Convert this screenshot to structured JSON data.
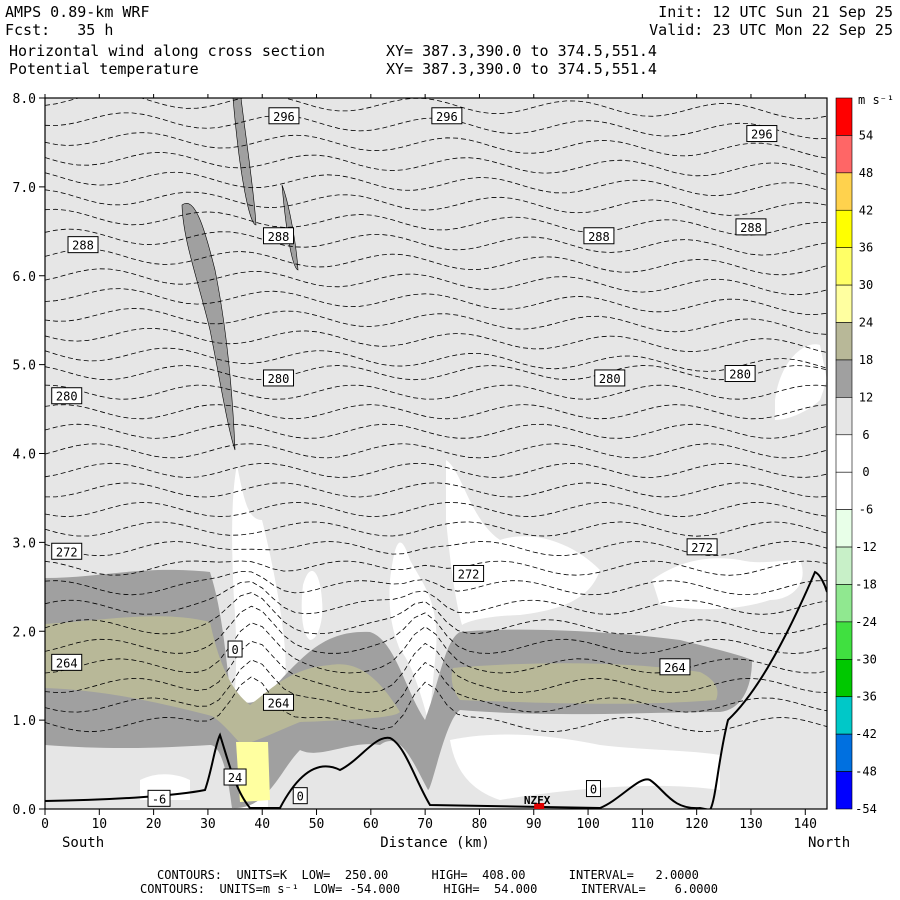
{
  "header": {
    "model": "AMPS 0.89-km WRF",
    "fcst": "Fcst:   35 h",
    "init": "Init: 12 UTC Sun 21 Sep 25",
    "valid": "Valid: 23 UTC Mon 22 Sep 25",
    "field1": "Horizontal wind along cross section",
    "field2": "Potential temperature",
    "xy1": "XY= 387.3,390.0 to 374.5,551.4",
    "xy2": "XY= 387.3,390.0 to 374.5,551.4"
  },
  "footer": {
    "line1": "CONTOURS:  UNITS=K  LOW=  250.00      HIGH=  408.00      INTERVAL=   2.0000",
    "line2": "CONTOURS:  UNITS=m s⁻¹  LOW= -54.000      HIGH=  54.000      INTERVAL=    6.0000"
  },
  "chart_data": {
    "type": "heatmap",
    "xlabel": "Distance (km)",
    "x_left_label": "South",
    "x_right_label": "North",
    "xlim": [
      0,
      144
    ],
    "ylim": [
      0,
      8
    ],
    "x_ticks": [
      0,
      10,
      20,
      30,
      40,
      50,
      60,
      70,
      80,
      90,
      100,
      110,
      120,
      130,
      140
    ],
    "y_ticks": [
      "0.0",
      "1.0",
      "2.0",
      "3.0",
      "4.0",
      "5.0",
      "6.0",
      "7.0",
      "8.0"
    ],
    "colorbar": {
      "unit_label": "m s⁻¹",
      "levels": [
        54,
        48,
        42,
        36,
        30,
        24,
        18,
        12,
        6,
        0,
        -6,
        -12,
        -18,
        -24,
        -30,
        -36,
        -42,
        -48,
        -54
      ],
      "colors": [
        "#ff0000",
        "#ff6666",
        "#ffd24d",
        "#ffff00",
        "#ffff66",
        "#ffffa0",
        "#b8b898",
        "#a0a0a0",
        "#e6e6e6",
        "#ffffff",
        "#ffffff",
        "#e8ffe8",
        "#c8f0c8",
        "#90e890",
        "#40e040",
        "#00c800",
        "#00c8c8",
        "#0070e0",
        "#0000ff"
      ]
    },
    "station": {
      "label": "NZFX",
      "x": 91,
      "y": 0.0
    },
    "theta_labels": [
      {
        "text": "296",
        "x": 44,
        "y": 7.8
      },
      {
        "text": "296",
        "x": 74,
        "y": 7.8
      },
      {
        "text": "296",
        "x": 132,
        "y": 7.6
      },
      {
        "text": "288",
        "x": 7,
        "y": 6.35
      },
      {
        "text": "288",
        "x": 43,
        "y": 6.45
      },
      {
        "text": "288",
        "x": 102,
        "y": 6.45
      },
      {
        "text": "288",
        "x": 130,
        "y": 6.55
      },
      {
        "text": "280",
        "x": 4,
        "y": 4.65
      },
      {
        "text": "280",
        "x": 43,
        "y": 4.85
      },
      {
        "text": "280",
        "x": 104,
        "y": 4.85
      },
      {
        "text": "280",
        "x": 128,
        "y": 4.9
      },
      {
        "text": "272",
        "x": 4,
        "y": 2.9
      },
      {
        "text": "272",
        "x": 78,
        "y": 2.65
      },
      {
        "text": "272",
        "x": 121,
        "y": 2.95
      },
      {
        "text": "264",
        "x": 4,
        "y": 1.65
      },
      {
        "text": "264",
        "x": 43,
        "y": 1.2
      },
      {
        "text": "264",
        "x": 116,
        "y": 1.6
      }
    ],
    "wind_labels": [
      {
        "text": "0",
        "x": 35,
        "y": 1.8
      },
      {
        "text": "24",
        "x": 35,
        "y": 0.36
      },
      {
        "text": "0",
        "x": 47,
        "y": 0.15
      },
      {
        "text": "0",
        "x": 101,
        "y": 0.23
      },
      {
        "text": "-6",
        "x": 21,
        "y": 0.12
      }
    ]
  }
}
